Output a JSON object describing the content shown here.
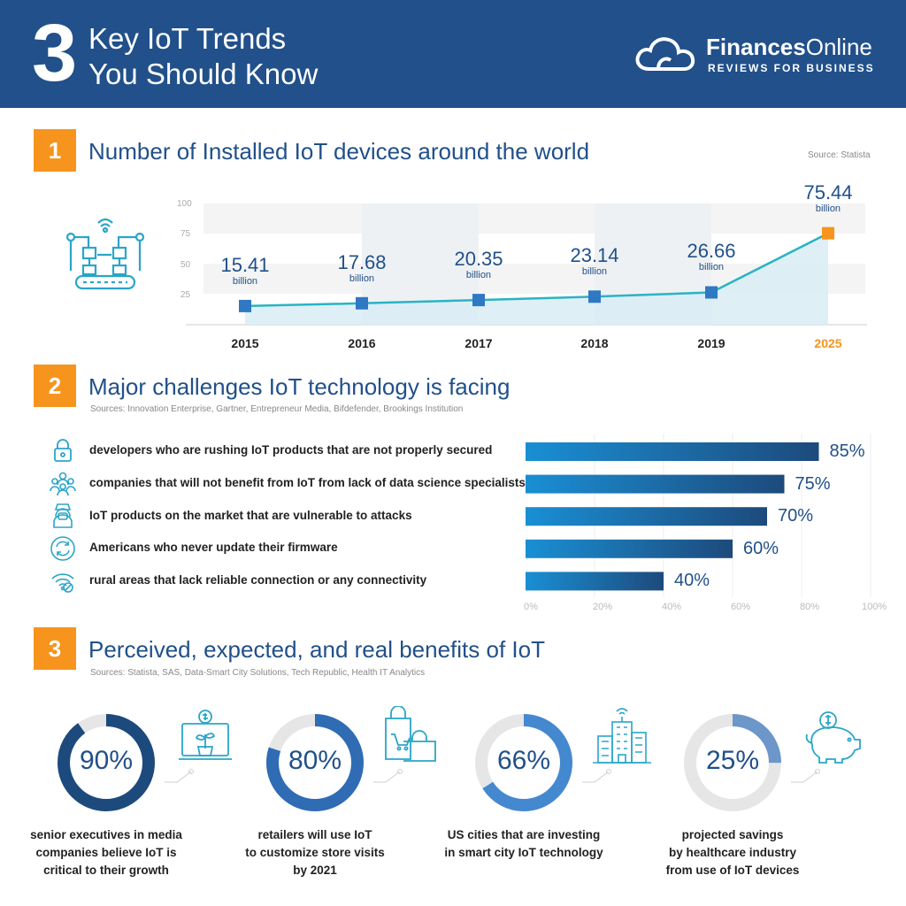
{
  "header": {
    "number": "3",
    "title_line1": "Key IoT Trends",
    "title_line2": "You Should Know",
    "brand_bold": "Finances",
    "brand_light": "Online",
    "brand_sub": "REVIEWS FOR BUSINESS",
    "bg_color": "#21508a"
  },
  "section1": {
    "number": "1",
    "title": "Number of Installed IoT devices around the world",
    "source": "Source: Statista",
    "icon": "iot-factory-icon"
  },
  "section2": {
    "number": "2",
    "title": "Major challenges IoT technology is facing",
    "source": "Sources: Innovation Enterprise, Gartner, Entrepreneur Media, Bifdefender, Brookings Institution",
    "items": [
      {
        "label": "developers who are rushing IoT products that are not properly secured",
        "pct": "85%",
        "icon": "lock-icon"
      },
      {
        "label": "companies that will not benefit from IoT from lack of data science specialists",
        "pct": "75%",
        "icon": "people-icon"
      },
      {
        "label": "IoT products on the market that are vulnerable to attacks",
        "pct": "70%",
        "icon": "hacker-icon"
      },
      {
        "label": "Americans who never update their firmware",
        "pct": "60%",
        "icon": "refresh-icon"
      },
      {
        "label": "rural areas that lack reliable connection or any connectivity",
        "pct": "40%",
        "icon": "no-wifi-icon"
      }
    ]
  },
  "section3": {
    "number": "3",
    "title": "Perceived, expected, and real benefits of IoT",
    "source": "Sources: Statista, SAS, Data-Smart City Solutions, Tech Republic, Health IT Analytics",
    "items": [
      {
        "pct": "90%",
        "line1": "senior executives in media",
        "line2": "companies believe IoT is",
        "line3": "critical to their growth",
        "icon": "plant-money-icon"
      },
      {
        "pct": "80%",
        "line1": "retailers will use IoT",
        "line2": "to customize store visits",
        "line3": "by 2021",
        "icon": "shopping-bags-icon"
      },
      {
        "pct": "66%",
        "line1": "US cities that are investing",
        "line2": "in smart city IoT technology",
        "line3": "",
        "icon": "smart-building-icon"
      },
      {
        "pct": "25%",
        "line1": "projected savings",
        "line2": "by healthcare industry",
        "line3": "from use of IoT devices",
        "icon": "piggy-bank-icon"
      }
    ]
  },
  "chart_data": [
    {
      "type": "area",
      "categories": [
        "2015",
        "2016",
        "2017",
        "2018",
        "2019",
        "2025"
      ],
      "values": [
        15.41,
        17.68,
        20.35,
        23.14,
        26.66,
        75.44
      ],
      "value_labels": [
        "15.41",
        "17.68",
        "20.35",
        "23.14",
        "26.66",
        "75.44"
      ],
      "unit_label": "billion",
      "yticks": [
        "25",
        "50",
        "75",
        "100"
      ],
      "ylim": [
        0,
        100
      ],
      "highlight_category": "2025",
      "colors": {
        "line": "#2ab3c4",
        "marker": "#2f78c4",
        "highlight": "#f7941d",
        "fill": "#d8ecf5"
      }
    },
    {
      "type": "bar",
      "orientation": "horizontal",
      "values": [
        85,
        75,
        70,
        60,
        40
      ],
      "xticks": [
        "0%",
        "20%",
        "40%",
        "60%",
        "80%",
        "100%"
      ],
      "xlim": [
        0,
        100
      ],
      "colors": {
        "start": "#1a8fd4",
        "end": "#1d4a7c"
      }
    },
    {
      "type": "pie",
      "style": "donut",
      "values": [
        90,
        80,
        66,
        25
      ],
      "colors": {
        "ring": [
          "#1d4a7c",
          "#2f6cb4",
          "#4488d0",
          "#6d96c9"
        ],
        "track": "#e6e6e6"
      }
    }
  ]
}
